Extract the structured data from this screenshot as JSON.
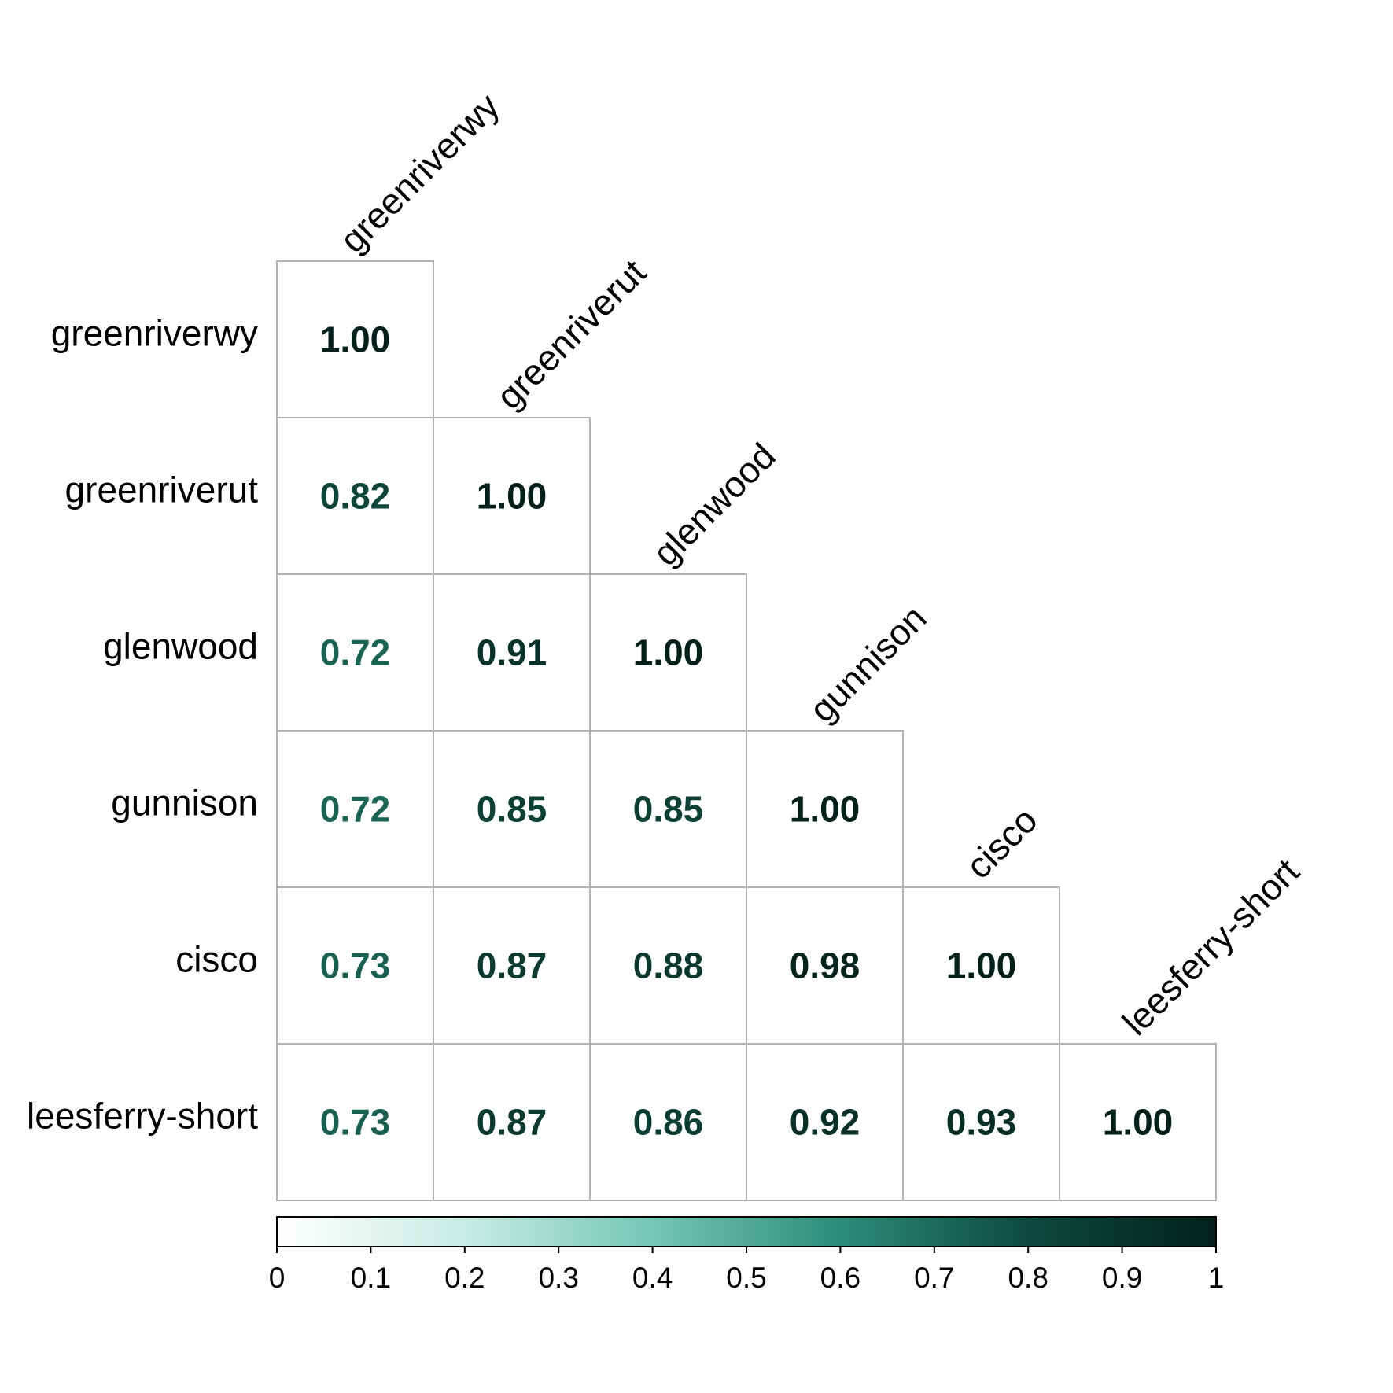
{
  "chart_data": {
    "type": "heatmap",
    "title": "",
    "xlabel": "",
    "ylabel": "",
    "variables": [
      "greenriverwy",
      "greenriverut",
      "glenwood",
      "gunnison",
      "cisco",
      "leesferry-short"
    ],
    "matrix_shape": "lower-triangular",
    "matrix": [
      [
        1.0
      ],
      [
        0.82,
        1.0
      ],
      [
        0.72,
        0.91,
        1.0
      ],
      [
        0.72,
        0.85,
        0.85,
        1.0
      ],
      [
        0.73,
        0.87,
        0.88,
        0.98,
        1.0
      ],
      [
        0.73,
        0.87,
        0.86,
        0.92,
        0.93,
        1.0
      ]
    ],
    "value_format": "2 decimals",
    "colorbar": {
      "range": [
        0,
        1
      ],
      "ticks": [
        "0",
        "0.1",
        "0.2",
        "0.3",
        "0.4",
        "0.5",
        "0.6",
        "0.7",
        "0.8",
        "0.9",
        "1"
      ],
      "colors": [
        "#ffffff",
        "#c8ebe3",
        "#74c7b3",
        "#2c8c7a",
        "#0d4a3d",
        "#03201a"
      ],
      "placement": "bottom"
    },
    "cell_background": "#ffffff",
    "grid_color": "#b3b3b3",
    "column_label_rotation": "-45deg, placed at top of each column"
  }
}
